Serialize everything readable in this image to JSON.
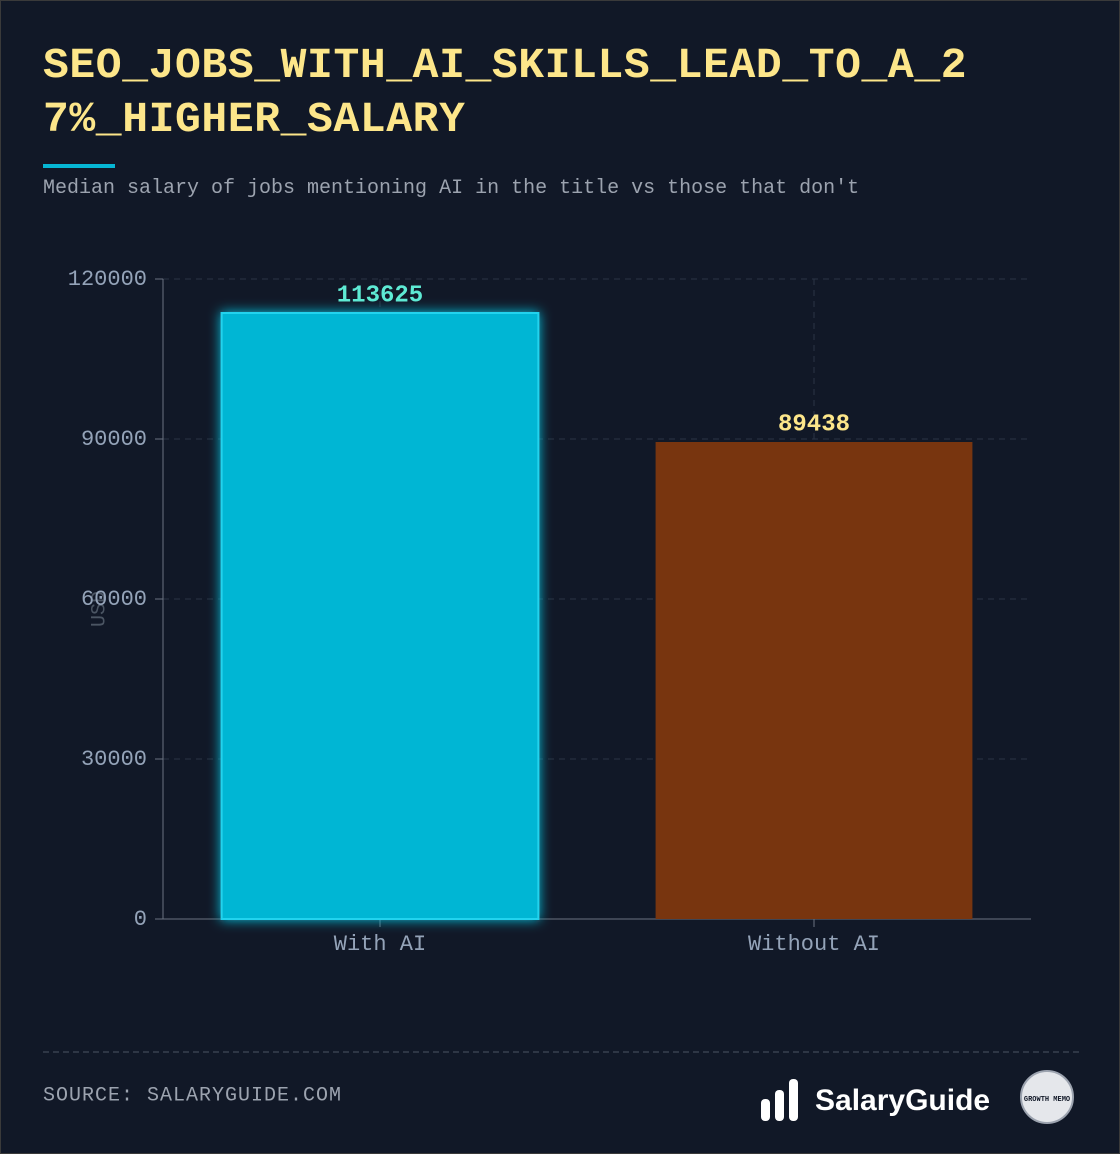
{
  "chart_data": {
    "type": "bar",
    "title": "SEO_JOBS_WITH_AI_SKILLS_LEAD_TO_A_27%_HIGHER_SALARY",
    "subtitle": "Median salary of jobs mentioning AI in the title vs those that don't",
    "y_label": "USD",
    "categories": [
      "With AI",
      "Without AI"
    ],
    "values": [
      113625,
      89438
    ],
    "colors": [
      "#06b6d4",
      "#78350f"
    ],
    "ylim": [
      0,
      120000
    ],
    "yticks": [
      0,
      30000,
      60000,
      90000,
      120000
    ],
    "grid": true,
    "source": "SOURCE: SALARYGUIDE.COM",
    "brand": "SalaryGuide",
    "badge": "GROWTH MEMO"
  }
}
